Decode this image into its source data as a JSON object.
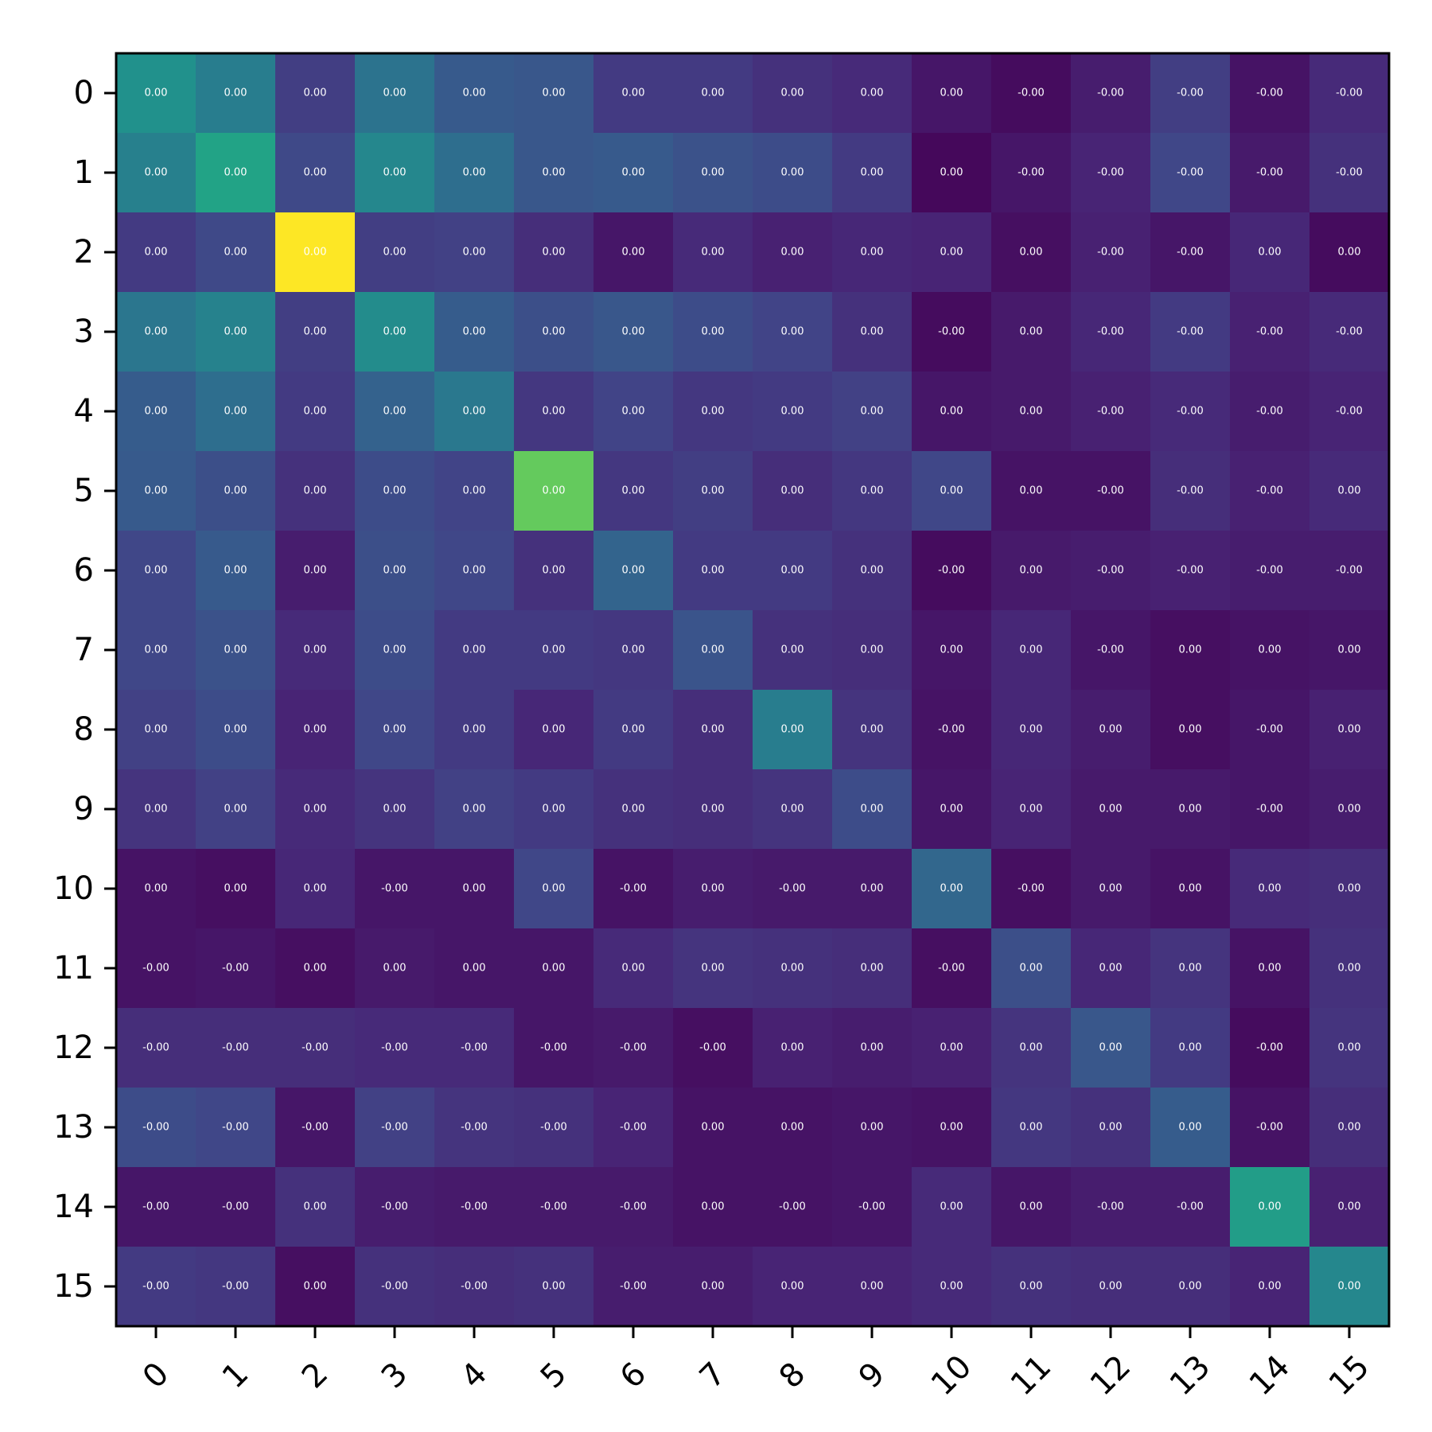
{
  "chart_data": {
    "type": "heatmap",
    "title": "",
    "xlabel": "",
    "ylabel": "",
    "colormap": "viridis",
    "x_categories": [
      "0",
      "1",
      "2",
      "3",
      "4",
      "5",
      "6",
      "7",
      "8",
      "9",
      "10",
      "11",
      "12",
      "13",
      "14",
      "15"
    ],
    "y_categories": [
      "0",
      "1",
      "2",
      "3",
      "4",
      "5",
      "6",
      "7",
      "8",
      "9",
      "10",
      "11",
      "12",
      "13",
      "14",
      "15"
    ],
    "x_tick_rotation_deg": 45,
    "values": [
      [
        0.5,
        0.42,
        0.18,
        0.38,
        0.28,
        0.27,
        0.17,
        0.17,
        0.14,
        0.12,
        0.06,
        0.03,
        0.08,
        0.18,
        0.05,
        0.12
      ],
      [
        0.43,
        0.58,
        0.22,
        0.46,
        0.36,
        0.27,
        0.28,
        0.25,
        0.23,
        0.17,
        0.02,
        0.06,
        0.1,
        0.21,
        0.07,
        0.14
      ],
      [
        0.17,
        0.22,
        1.0,
        0.18,
        0.19,
        0.13,
        0.06,
        0.12,
        0.09,
        0.11,
        0.1,
        0.04,
        0.09,
        0.06,
        0.11,
        0.03
      ],
      [
        0.39,
        0.44,
        0.18,
        0.48,
        0.29,
        0.24,
        0.27,
        0.23,
        0.2,
        0.14,
        0.03,
        0.07,
        0.11,
        0.17,
        0.09,
        0.12
      ],
      [
        0.29,
        0.36,
        0.17,
        0.31,
        0.4,
        0.16,
        0.2,
        0.16,
        0.17,
        0.19,
        0.06,
        0.07,
        0.09,
        0.12,
        0.08,
        0.1
      ],
      [
        0.28,
        0.24,
        0.14,
        0.23,
        0.2,
        0.76,
        0.16,
        0.18,
        0.13,
        0.16,
        0.21,
        0.05,
        0.05,
        0.13,
        0.09,
        0.12
      ],
      [
        0.21,
        0.28,
        0.08,
        0.24,
        0.21,
        0.14,
        0.32,
        0.17,
        0.17,
        0.14,
        0.03,
        0.07,
        0.08,
        0.09,
        0.08,
        0.08
      ],
      [
        0.21,
        0.25,
        0.12,
        0.23,
        0.17,
        0.17,
        0.16,
        0.26,
        0.14,
        0.13,
        0.06,
        0.11,
        0.06,
        0.04,
        0.05,
        0.06
      ],
      [
        0.19,
        0.23,
        0.1,
        0.21,
        0.17,
        0.11,
        0.17,
        0.13,
        0.42,
        0.15,
        0.05,
        0.11,
        0.08,
        0.04,
        0.06,
        0.09
      ],
      [
        0.15,
        0.19,
        0.12,
        0.15,
        0.19,
        0.17,
        0.14,
        0.13,
        0.15,
        0.23,
        0.06,
        0.1,
        0.07,
        0.07,
        0.06,
        0.08
      ],
      [
        0.05,
        0.04,
        0.11,
        0.06,
        0.06,
        0.21,
        0.05,
        0.08,
        0.07,
        0.07,
        0.33,
        0.04,
        0.07,
        0.05,
        0.12,
        0.13
      ],
      [
        0.05,
        0.06,
        0.04,
        0.07,
        0.06,
        0.06,
        0.12,
        0.15,
        0.14,
        0.13,
        0.04,
        0.24,
        0.11,
        0.15,
        0.05,
        0.14
      ],
      [
        0.13,
        0.13,
        0.13,
        0.12,
        0.12,
        0.06,
        0.07,
        0.04,
        0.09,
        0.08,
        0.09,
        0.15,
        0.27,
        0.17,
        0.03,
        0.15
      ],
      [
        0.23,
        0.21,
        0.06,
        0.19,
        0.15,
        0.14,
        0.1,
        0.05,
        0.05,
        0.06,
        0.05,
        0.16,
        0.14,
        0.29,
        0.05,
        0.13
      ],
      [
        0.06,
        0.06,
        0.14,
        0.08,
        0.07,
        0.07,
        0.07,
        0.05,
        0.05,
        0.06,
        0.12,
        0.06,
        0.08,
        0.08,
        0.55,
        0.09
      ],
      [
        0.17,
        0.16,
        0.04,
        0.14,
        0.13,
        0.14,
        0.08,
        0.08,
        0.1,
        0.1,
        0.12,
        0.14,
        0.13,
        0.13,
        0.1,
        0.46
      ]
    ],
    "cell_labels": [
      [
        "0.00",
        "0.00",
        "0.00",
        "0.00",
        "0.00",
        "0.00",
        "0.00",
        "0.00",
        "0.00",
        "0.00",
        "0.00",
        "-0.00",
        "-0.00",
        "-0.00",
        "-0.00",
        "-0.00"
      ],
      [
        "0.00",
        "0.00",
        "0.00",
        "0.00",
        "0.00",
        "0.00",
        "0.00",
        "0.00",
        "0.00",
        "0.00",
        "0.00",
        "-0.00",
        "-0.00",
        "-0.00",
        "-0.00",
        "-0.00"
      ],
      [
        "0.00",
        "0.00",
        "0.00",
        "0.00",
        "0.00",
        "0.00",
        "0.00",
        "0.00",
        "0.00",
        "0.00",
        "0.00",
        "0.00",
        "-0.00",
        "-0.00",
        "0.00",
        "0.00"
      ],
      [
        "0.00",
        "0.00",
        "0.00",
        "0.00",
        "0.00",
        "0.00",
        "0.00",
        "0.00",
        "0.00",
        "0.00",
        "-0.00",
        "0.00",
        "-0.00",
        "-0.00",
        "-0.00",
        "-0.00"
      ],
      [
        "0.00",
        "0.00",
        "0.00",
        "0.00",
        "0.00",
        "0.00",
        "0.00",
        "0.00",
        "0.00",
        "0.00",
        "0.00",
        "0.00",
        "-0.00",
        "-0.00",
        "-0.00",
        "-0.00"
      ],
      [
        "0.00",
        "0.00",
        "0.00",
        "0.00",
        "0.00",
        "0.00",
        "0.00",
        "0.00",
        "0.00",
        "0.00",
        "0.00",
        "0.00",
        "-0.00",
        "-0.00",
        "-0.00",
        "0.00"
      ],
      [
        "0.00",
        "0.00",
        "0.00",
        "0.00",
        "0.00",
        "0.00",
        "0.00",
        "0.00",
        "0.00",
        "0.00",
        "-0.00",
        "0.00",
        "-0.00",
        "-0.00",
        "-0.00",
        "-0.00"
      ],
      [
        "0.00",
        "0.00",
        "0.00",
        "0.00",
        "0.00",
        "0.00",
        "0.00",
        "0.00",
        "0.00",
        "0.00",
        "0.00",
        "0.00",
        "-0.00",
        "0.00",
        "0.00",
        "0.00"
      ],
      [
        "0.00",
        "0.00",
        "0.00",
        "0.00",
        "0.00",
        "0.00",
        "0.00",
        "0.00",
        "0.00",
        "0.00",
        "-0.00",
        "0.00",
        "0.00",
        "0.00",
        "-0.00",
        "0.00"
      ],
      [
        "0.00",
        "0.00",
        "0.00",
        "0.00",
        "0.00",
        "0.00",
        "0.00",
        "0.00",
        "0.00",
        "0.00",
        "0.00",
        "0.00",
        "0.00",
        "0.00",
        "-0.00",
        "0.00"
      ],
      [
        "0.00",
        "0.00",
        "0.00",
        "-0.00",
        "0.00",
        "0.00",
        "-0.00",
        "0.00",
        "-0.00",
        "0.00",
        "0.00",
        "-0.00",
        "0.00",
        "0.00",
        "0.00",
        "0.00"
      ],
      [
        "-0.00",
        "-0.00",
        "0.00",
        "0.00",
        "0.00",
        "0.00",
        "0.00",
        "0.00",
        "0.00",
        "0.00",
        "-0.00",
        "0.00",
        "0.00",
        "0.00",
        "0.00",
        "0.00"
      ],
      [
        "-0.00",
        "-0.00",
        "-0.00",
        "-0.00",
        "-0.00",
        "-0.00",
        "-0.00",
        "-0.00",
        "0.00",
        "0.00",
        "0.00",
        "0.00",
        "0.00",
        "0.00",
        "-0.00",
        "0.00"
      ],
      [
        "-0.00",
        "-0.00",
        "-0.00",
        "-0.00",
        "-0.00",
        "-0.00",
        "-0.00",
        "0.00",
        "0.00",
        "0.00",
        "0.00",
        "0.00",
        "0.00",
        "0.00",
        "-0.00",
        "0.00"
      ],
      [
        "-0.00",
        "-0.00",
        "0.00",
        "-0.00",
        "-0.00",
        "-0.00",
        "-0.00",
        "0.00",
        "-0.00",
        "-0.00",
        "0.00",
        "0.00",
        "-0.00",
        "-0.00",
        "0.00",
        "0.00"
      ],
      [
        "-0.00",
        "-0.00",
        "0.00",
        "-0.00",
        "-0.00",
        "0.00",
        "-0.00",
        "0.00",
        "0.00",
        "0.00",
        "0.00",
        "0.00",
        "0.00",
        "0.00",
        "0.00",
        "0.00"
      ]
    ],
    "grid": false,
    "legend": "none"
  }
}
